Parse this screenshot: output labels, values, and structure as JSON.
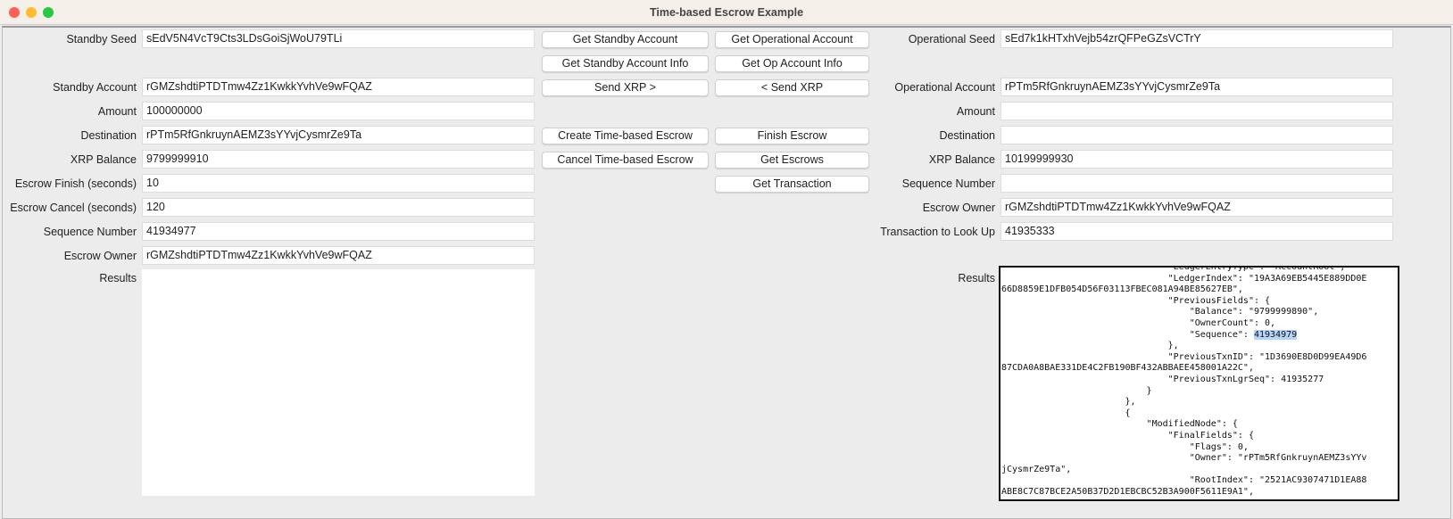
{
  "window": {
    "title": "Time-based Escrow Example"
  },
  "standby": {
    "fields": [
      {
        "label": "Standby Seed",
        "value": "sEdV5N4VcT9Cts3LDsGoiSjWoU79TLi"
      },
      {
        "label": "Standby Account",
        "value": "rGMZshdtiPTDTmw4Zz1KwkkYvhVe9wFQAZ"
      },
      {
        "label": "Amount",
        "value": "100000000"
      },
      {
        "label": "Destination",
        "value": "rPTm5RfGnkruynAEMZ3sYYvjCysmrZe9Ta"
      },
      {
        "label": "XRP Balance",
        "value": "9799999910"
      },
      {
        "label": "Escrow Finish (seconds)",
        "value": "10"
      },
      {
        "label": "Escrow Cancel (seconds)",
        "value": "120"
      },
      {
        "label": "Sequence Number",
        "value": "41934977"
      },
      {
        "label": "Escrow Owner",
        "value": "rGMZshdtiPTDTmw4Zz1KwkkYvhVe9wFQAZ"
      }
    ],
    "results_label": "Results",
    "results_value": ""
  },
  "buttons": {
    "col1": [
      "Get Standby Account",
      "Get Standby Account Info",
      "Send XRP >",
      "Create Time-based Escrow",
      "Cancel Time-based Escrow"
    ],
    "col2": [
      "Get Operational Account",
      "Get Op Account Info",
      "< Send XRP",
      "Finish Escrow",
      "Get Escrows",
      "Get Transaction"
    ]
  },
  "operational": {
    "fields": [
      {
        "label": "Operational Seed",
        "value": "sEd7k1kHTxhVejb54zrQFPeGZsVCTrY"
      },
      {
        "label": "Operational Account",
        "value": "rPTm5RfGnkruynAEMZ3sYYvjCysmrZe9Ta"
      },
      {
        "label": "Amount",
        "value": ""
      },
      {
        "label": "Destination",
        "value": ""
      },
      {
        "label": "XRP Balance",
        "value": "10199999930"
      },
      {
        "label": "Sequence Number",
        "value": ""
      },
      {
        "label": "Escrow Owner",
        "value": "rGMZshdtiPTDTmw4Zz1KwkkYvhVe9wFQAZ"
      },
      {
        "label": "Transaction to Look Up",
        "value": "41935333"
      }
    ],
    "results_label": "Results",
    "results_selection": "41934979",
    "results_lines": [
      "                               \"LedgerEntryType\": \"AccountRoot\",",
      "                               \"LedgerIndex\": \"19A3A69EB5445E889DD0E",
      "66D8859E1DFB054D56F03113FBEC081A94BE85627EB\",",
      "                               \"PreviousFields\": {",
      "                                   \"Balance\": \"9799999890\",",
      "                                   \"OwnerCount\": 0,",
      "                                   \"Sequence\": 41934979",
      "                               },",
      "                               \"PreviousTxnID\": \"1D3690E8D0D99EA49D6",
      "87CDA0A8BAE331DE4C2FB190BF432ABBAEE458001A22C\",",
      "                               \"PreviousTxnLgrSeq\": 41935277",
      "                           }",
      "                       },",
      "                       {",
      "                           \"ModifiedNode\": {",
      "                               \"FinalFields\": {",
      "                                   \"Flags\": 0,",
      "                                   \"Owner\": \"rPTm5RfGnkruynAEMZ3sYYv",
      "jCysmrZe9Ta\",",
      "                                   \"RootIndex\": \"2521AC9307471D1EA88",
      "ABE8C7C87BCE2A50B37D2D1EBCBC52B3A900F5611E9A1\","
    ]
  }
}
